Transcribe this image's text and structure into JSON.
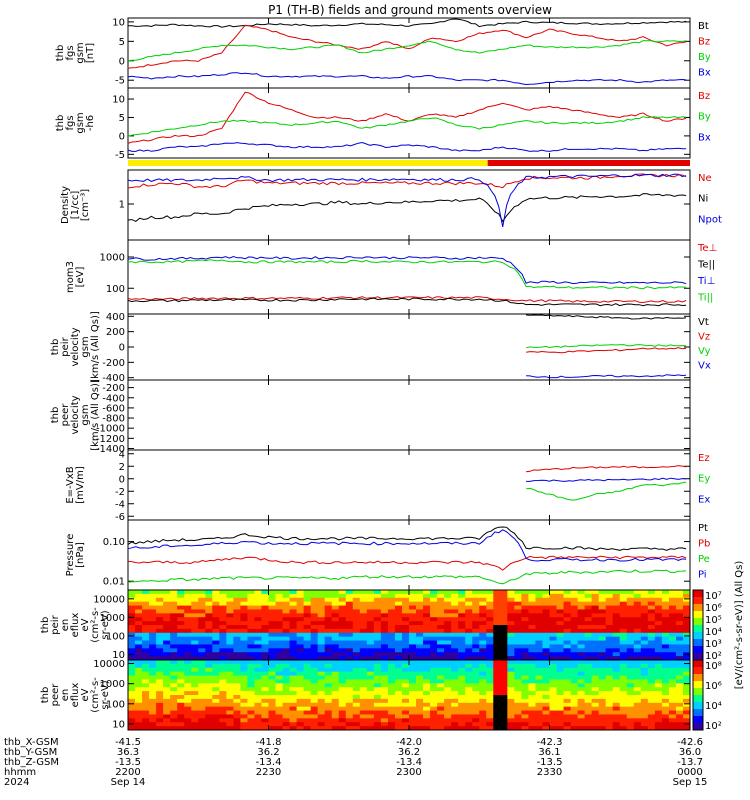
{
  "title": "P1 (TH-B) fields and ground moments overview",
  "colors": {
    "black": "#000000",
    "red": "#e00000",
    "green": "#00d000",
    "blue": "#0000e0",
    "yellow": "#ffee00"
  },
  "chart_data": [
    {
      "type": "line",
      "panel": "fgs-gsm",
      "ylabel": [
        "thb",
        "fgs",
        "gsm",
        "[nT]"
      ],
      "ylim": [
        -7,
        11
      ],
      "yticks": [
        10,
        5,
        0,
        -5
      ],
      "grid": false,
      "series": [
        {
          "name": "Bt",
          "color": "black",
          "values": [
            9,
            9,
            9.3,
            9,
            8.8,
            9,
            9.5,
            9.3,
            9,
            9.2,
            9.5,
            9.3,
            9,
            9.5,
            11,
            9,
            9.5,
            10,
            9.8,
            9.7,
            9.5,
            9.6,
            9.8,
            10,
            10
          ]
        },
        {
          "name": "Bz",
          "color": "red",
          "values": [
            -2,
            -1,
            0,
            0,
            2,
            9,
            8,
            6,
            5,
            4,
            3,
            5,
            3,
            6,
            5,
            7,
            8,
            6,
            8,
            7,
            6,
            5,
            6,
            4,
            5
          ]
        },
        {
          "name": "By",
          "color": "green",
          "values": [
            0,
            1,
            2,
            3,
            4,
            4,
            3.5,
            3,
            3.5,
            4,
            2,
            3,
            4,
            5,
            3,
            2,
            3,
            4,
            3.5,
            3.5,
            3.5,
            4,
            5,
            5,
            5
          ]
        },
        {
          "name": "Bx",
          "color": "blue",
          "values": [
            -4,
            -4.5,
            -4,
            -4,
            -3.5,
            -3,
            -4,
            -4,
            -4,
            -4,
            -4,
            -4.5,
            -4,
            -4,
            -5,
            -5,
            -5,
            -6,
            -5.5,
            -5,
            -5,
            -5,
            -5.5,
            -5,
            -5
          ]
        }
      ]
    },
    {
      "type": "line",
      "panel": "fgs-gsm-h",
      "ylabel": [
        "thb",
        "fgs",
        "gsm",
        "-h6"
      ],
      "ylim": [
        -6,
        13
      ],
      "yticks": [
        10,
        5,
        0,
        -5
      ],
      "grid": false,
      "series": [
        {
          "name": "Bz",
          "color": "red",
          "values": [
            -2,
            -1,
            0,
            0,
            2,
            12,
            9,
            7,
            5,
            5,
            4,
            6,
            4,
            6,
            5,
            7,
            9,
            7,
            8,
            7,
            6,
            5,
            6,
            4,
            5
          ]
        },
        {
          "name": "By",
          "color": "green",
          "values": [
            0,
            1,
            2,
            3,
            4,
            4,
            3.5,
            3,
            3.5,
            4,
            2,
            3,
            4,
            5,
            3,
            2,
            3,
            4,
            3.5,
            3.5,
            3.5,
            4,
            5,
            5,
            5
          ]
        },
        {
          "name": "Bx",
          "color": "blue",
          "values": [
            -4,
            -4,
            -3,
            -3,
            -2,
            -2,
            -2.5,
            -3,
            -3,
            -3,
            -2,
            -3,
            -2.5,
            -3,
            -4,
            -4,
            -3,
            -4,
            -4,
            -3.5,
            -3.5,
            -3.5,
            -4,
            -3.5,
            -3.5
          ]
        }
      ]
    },
    {
      "type": "line",
      "panel": "density",
      "ylabel": [
        "Density",
        "[1/cc]",
        "[cm^-3]"
      ],
      "ylim": [
        0.15,
        6
      ],
      "yscale": "log",
      "yticks": [
        1
      ],
      "grid": false,
      "series": [
        {
          "name": "Ne",
          "color": "red",
          "values": [
            2.5,
            2.8,
            3,
            2.5,
            2.5,
            3.5,
            3,
            3,
            3,
            3,
            3,
            3,
            3,
            3,
            3,
            3,
            2.5,
            4,
            4,
            4,
            4,
            4.5,
            4.5,
            4.5,
            4.5
          ]
        },
        {
          "name": "Ni",
          "color": "black",
          "values": [
            0.4,
            0.5,
            0.5,
            0.6,
            0.6,
            0.8,
            0.9,
            1,
            1,
            1.1,
            1,
            1.1,
            1.1,
            1.2,
            1.2,
            1.3,
            0.4,
            1.3,
            1.4,
            1.4,
            1.5,
            1.5,
            1.6,
            1.6,
            1.6
          ]
        },
        {
          "name": "Npot",
          "color": "blue",
          "values": [
            3.5,
            3.5,
            3.5,
            3.5,
            4,
            4,
            3.5,
            3.6,
            3.6,
            3.6,
            3.6,
            3.7,
            3.7,
            3.6,
            3.6,
            3.8,
            0.3,
            4,
            4.2,
            4.3,
            4.3,
            4.5,
            4.5,
            4.6,
            4.6
          ]
        }
      ]
    },
    {
      "type": "line",
      "panel": "moment-temp",
      "ylabel": [
        "mom3",
        "[eV]"
      ],
      "ylim": [
        15,
        3500
      ],
      "yscale": "log",
      "yticks": [
        1000,
        100
      ],
      "grid": false,
      "series": [
        {
          "name": "Te⊥",
          "color": "red",
          "values": [
            45,
            45,
            45,
            48,
            48,
            48,
            48,
            48,
            48,
            50,
            50,
            50,
            50,
            50,
            50,
            50,
            45,
            40,
            40,
            38,
            38,
            38,
            38,
            38,
            38
          ]
        },
        {
          "name": "Te||",
          "color": "black",
          "values": [
            40,
            40,
            40,
            42,
            42,
            42,
            42,
            42,
            42,
            45,
            45,
            45,
            45,
            45,
            45,
            45,
            40,
            30,
            30,
            30,
            30,
            30,
            30,
            30,
            30
          ]
        },
        {
          "name": "Ti⊥",
          "color": "blue",
          "values": [
            900,
            850,
            900,
            900,
            1000,
            950,
            950,
            900,
            950,
            950,
            1000,
            950,
            950,
            950,
            900,
            950,
            900,
            150,
            160,
            150,
            150,
            150,
            150,
            150,
            150
          ]
        },
        {
          "name": "Ti||",
          "color": "green",
          "values": [
            700,
            700,
            700,
            750,
            800,
            700,
            700,
            700,
            700,
            700,
            750,
            700,
            700,
            700,
            700,
            700,
            700,
            110,
            110,
            105,
            105,
            105,
            105,
            105,
            105
          ]
        }
      ]
    },
    {
      "type": "line",
      "panel": "peir-velocity",
      "ylabel": [
        "thb",
        "peir",
        "velocity",
        "gsm",
        "[km/s (All Qs)]"
      ],
      "ylim": [
        -430,
        430
      ],
      "yticks": [
        400,
        200,
        0,
        -200,
        -400
      ],
      "grid": false,
      "series": [
        {
          "name": "Vt",
          "color": "black",
          "values": [
            null,
            null,
            null,
            null,
            null,
            null,
            null,
            null,
            null,
            null,
            null,
            null,
            null,
            null,
            null,
            null,
            null,
            420,
            410,
            400,
            390,
            380,
            370,
            380,
            380
          ]
        },
        {
          "name": "Vz",
          "color": "red",
          "values": [
            null,
            null,
            null,
            null,
            null,
            null,
            null,
            null,
            null,
            null,
            null,
            null,
            null,
            null,
            null,
            null,
            null,
            -60,
            -70,
            -60,
            -50,
            -40,
            -20,
            -20,
            -10
          ]
        },
        {
          "name": "Vy",
          "color": "green",
          "values": [
            null,
            null,
            null,
            null,
            null,
            null,
            null,
            null,
            null,
            null,
            null,
            null,
            null,
            null,
            null,
            null,
            null,
            -10,
            0,
            10,
            20,
            30,
            20,
            20,
            10
          ]
        },
        {
          "name": "Vx",
          "color": "blue",
          "values": [
            null,
            null,
            null,
            null,
            null,
            null,
            null,
            null,
            null,
            null,
            null,
            null,
            null,
            null,
            null,
            null,
            null,
            -380,
            -390,
            -390,
            -380,
            -380,
            -380,
            -370,
            -370
          ]
        }
      ]
    },
    {
      "type": "line",
      "panel": "peer-velocity",
      "ylabel": [
        "thb",
        "peer",
        "velocity",
        "gsm",
        "[km/s (All Qs)]"
      ],
      "ylim": [
        -1430,
        -50
      ],
      "yticks": [
        -200,
        -400,
        -600,
        -800,
        -1000,
        -1200,
        -1400
      ],
      "grid": false,
      "series": [
        {
          "name": "Vt",
          "color": "black",
          "values": []
        },
        {
          "name": "Vz",
          "color": "red",
          "values": []
        },
        {
          "name": "Vy",
          "color": "green",
          "values": []
        },
        {
          "name": "Vx",
          "color": "blue",
          "values": []
        }
      ]
    },
    {
      "type": "line",
      "panel": "efield",
      "ylabel": [
        "E=-VxB",
        "[mV/m]"
      ],
      "ylim": [
        -6.6,
        4.6
      ],
      "yticks": [
        4,
        2,
        0,
        -2,
        -4,
        -6
      ],
      "grid": false,
      "series": [
        {
          "name": "Ez",
          "color": "red",
          "values": [
            null,
            null,
            null,
            null,
            null,
            null,
            null,
            null,
            null,
            null,
            null,
            null,
            null,
            null,
            null,
            null,
            null,
            1.2,
            1.5,
            1.7,
            1.8,
            1.9,
            1.8,
            2,
            2
          ]
        },
        {
          "name": "Ey",
          "color": "green",
          "values": [
            null,
            null,
            null,
            null,
            null,
            null,
            null,
            null,
            null,
            null,
            null,
            null,
            null,
            null,
            null,
            null,
            null,
            -1.5,
            -2.5,
            -3.5,
            -2.5,
            -2,
            -1,
            -1,
            -0.5
          ]
        },
        {
          "name": "Ex",
          "color": "blue",
          "values": [
            null,
            null,
            null,
            null,
            null,
            null,
            null,
            null,
            null,
            null,
            null,
            null,
            null,
            null,
            null,
            null,
            null,
            -0.3,
            -0.3,
            -0.3,
            -0.2,
            -0.2,
            -0.1,
            0,
            0
          ]
        }
      ]
    },
    {
      "type": "line",
      "panel": "pressure",
      "ylabel": [
        "Pressure",
        "[nPa]"
      ],
      "ylim": [
        0.006,
        0.35
      ],
      "yscale": "log",
      "yticks": [
        0.1,
        0.01
      ],
      "yticklabels": [
        "0.10",
        "0.01"
      ],
      "grid": false,
      "series": [
        {
          "name": "Pt",
          "color": "black",
          "values": [
            0.09,
            0.1,
            0.11,
            0.11,
            0.12,
            0.15,
            0.13,
            0.12,
            0.12,
            0.12,
            0.12,
            0.12,
            0.12,
            0.12,
            0.12,
            0.12,
            0.25,
            0.07,
            0.07,
            0.07,
            0.065,
            0.065,
            0.065,
            0.065,
            0.065
          ]
        },
        {
          "name": "Pb",
          "color": "red",
          "values": [
            0.03,
            0.03,
            0.03,
            0.03,
            0.035,
            0.04,
            0.035,
            0.03,
            0.03,
            0.03,
            0.03,
            0.03,
            0.03,
            0.03,
            0.03,
            0.03,
            0.02,
            0.04,
            0.04,
            0.04,
            0.04,
            0.04,
            0.04,
            0.04,
            0.04
          ]
        },
        {
          "name": "Pe",
          "color": "green",
          "values": [
            0.01,
            0.01,
            0.011,
            0.011,
            0.012,
            0.012,
            0.012,
            0.012,
            0.012,
            0.012,
            0.013,
            0.013,
            0.013,
            0.013,
            0.013,
            0.013,
            0.008,
            0.015,
            0.016,
            0.017,
            0.017,
            0.018,
            0.018,
            0.018,
            0.018
          ]
        },
        {
          "name": "Pi",
          "color": "blue",
          "values": [
            0.07,
            0.07,
            0.08,
            0.08,
            0.09,
            0.1,
            0.09,
            0.09,
            0.09,
            0.09,
            0.09,
            0.09,
            0.09,
            0.09,
            0.09,
            0.09,
            0.2,
            0.035,
            0.035,
            0.035,
            0.035,
            0.035,
            0.035,
            0.035,
            0.035
          ]
        }
      ]
    },
    {
      "type": "heatmap",
      "panel": "peir-spec",
      "ylabel": [
        "thb",
        "peir",
        "en",
        "eflux",
        "eV",
        "(cm^2-s-",
        "sr-eV)"
      ],
      "ylim": [
        5,
        30000
      ],
      "yscale": "log",
      "yticks": [
        10000,
        1000,
        100,
        10
      ],
      "colorbar": {
        "range": [
          2,
          7
        ],
        "ticks": [
          "10^7",
          "10^6",
          "10^5",
          "10^4",
          "10^3",
          "10^2"
        ]
      }
    },
    {
      "type": "heatmap",
      "panel": "peer-spec",
      "ylabel": [
        "thb",
        "peer",
        "en",
        "eflux",
        "eV",
        "(cm^2-s-",
        "sr-eV)"
      ],
      "ylim": [
        5,
        15000
      ],
      "yscale": "log",
      "yticks": [
        10000,
        1000,
        100,
        10
      ],
      "colorbar": {
        "range": [
          2,
          8
        ],
        "ticks": [
          "10^8",
          "10^6",
          "10^4",
          "10^2"
        ]
      },
      "colorbar_label": "[eV/(cm^2-s-sr-eV)] (All Qs)"
    }
  ],
  "x_axis": {
    "rows": [
      {
        "label": "thb_X-GSM",
        "values": [
          "-41.5",
          "-41.8",
          "-42.0",
          "-42.3",
          "-42.6"
        ]
      },
      {
        "label": "thb_Y-GSM",
        "values": [
          "36.3",
          "36.2",
          "36.2",
          "36.1",
          "36.0"
        ]
      },
      {
        "label": "thb_Z-GSM",
        "values": [
          "-13.5",
          "-13.4",
          "-13.4",
          "-13.5",
          "-13.7"
        ]
      },
      {
        "label": "hhmm",
        "values": [
          "2200",
          "2230",
          "2300",
          "2330",
          "0000"
        ]
      },
      {
        "label": "2024",
        "values": [
          "Sep 14",
          "",
          "",
          "",
          "Sep 15"
        ]
      }
    ]
  },
  "state_bar": {
    "segments": [
      {
        "color": "yellow",
        "from": 0,
        "to": 0.64
      },
      {
        "color": "red",
        "from": 0.64,
        "to": 1
      }
    ]
  }
}
